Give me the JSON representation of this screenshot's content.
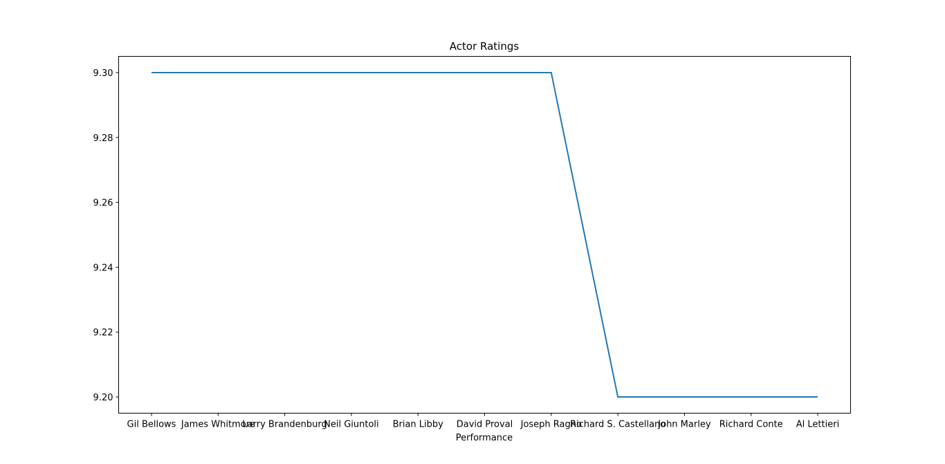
{
  "chart_data": {
    "type": "line",
    "title": "Actor Ratings",
    "xlabel": "Performance",
    "ylabel": "",
    "categories": [
      "Gil Bellows",
      "James Whitmore",
      "Larry Brandenburg",
      "Neil Giuntoli",
      "Brian Libby",
      "David Proval",
      "Joseph Ragno",
      "Richard S. Castellano",
      "John Marley",
      "Richard Conte",
      "Al Lettieri"
    ],
    "series": [
      {
        "values": [
          9.3,
          9.3,
          9.3,
          9.3,
          9.3,
          9.3,
          9.3,
          9.2,
          9.2,
          9.2,
          9.2
        ]
      }
    ],
    "ylim": [
      9.195,
      9.305
    ],
    "yticks": [
      9.2,
      9.22,
      9.24,
      9.26,
      9.28,
      9.3
    ],
    "ytick_labels": [
      "9.20",
      "9.22",
      "9.24",
      "9.26",
      "9.28",
      "9.30"
    ],
    "grid": false,
    "colors": {
      "line": "#1f77b4",
      "axes": "#000000"
    }
  }
}
